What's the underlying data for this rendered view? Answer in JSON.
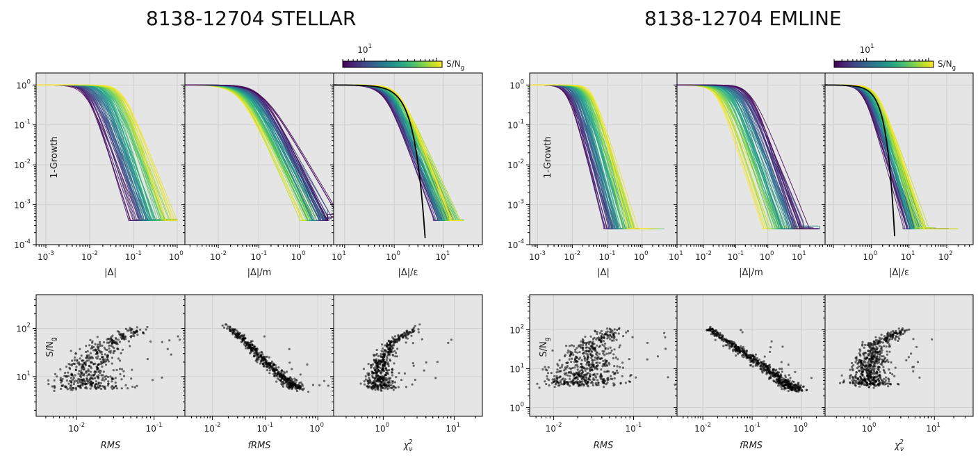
{
  "chart_data": [
    {
      "title": "8138-12704 STELLAR",
      "colorbar": {
        "label": "S/N$_g$",
        "ticks": [
          "10$^{1}$"
        ],
        "colormap": "viridis",
        "range": [
          5,
          120
        ],
        "log": true
      },
      "growth_panels": [
        {
          "type": "line",
          "xlabel": "|Δ|",
          "ylabel": "1-Growth",
          "xscale": "log",
          "yscale": "log",
          "xlim": [
            0.0006,
            1.5
          ],
          "ylim": [
            0.0001,
            2
          ],
          "xticks": [
            "10$^{-3}$",
            "10$^{-2}$",
            "10$^{-1}$",
            "10$^{0}$"
          ],
          "yticks": [
            "10$^{0}$",
            "10$^{-1}$",
            "10$^{-2}$",
            "10$^{-3}$",
            "10$^{-4}$"
          ],
          "curves": {
            "count": 60,
            "x_half_range": [
              0.008,
              0.06
            ],
            "falloff": 3.2,
            "y_floor": 0.0004,
            "tail_x_max": 1.0
          }
        },
        {
          "type": "line",
          "xlabel": "|Δ|/m",
          "xscale": "log",
          "yscale": "log",
          "xlim": [
            0.0015,
            7
          ],
          "ylim": [
            0.0001,
            2
          ],
          "xticks": [
            "10$^{-2}$",
            "10$^{-1}$",
            "10$^{0}$",
            "10$^{1}$"
          ],
          "curves": {
            "count": 60,
            "x_half_range": [
              0.03,
              0.12
            ],
            "falloff": 2.0,
            "y_floor": 0.0004,
            "tail_x_max": 5,
            "yellow_left": true
          }
        },
        {
          "type": "line",
          "xlabel": "|Δ|/ε",
          "xscale": "log",
          "yscale": "log",
          "xlim": [
            0.06,
            60
          ],
          "ylim": [
            0.0001,
            2
          ],
          "xticks": [
            "10$^{0}$",
            "10$^{1}$"
          ],
          "curves": {
            "count": 60,
            "x_half_range": [
              0.6,
              1.3
            ],
            "falloff": 3.0,
            "y_floor": 0.0004,
            "tail_x_max": 25
          },
          "reference_curve": {
            "color": "#000000",
            "description": "Gaussian reference"
          }
        }
      ],
      "scatter_panels": [
        {
          "type": "scatter",
          "xlabel": "RMS",
          "ylabel": "S/N$_g$",
          "xscale": "log",
          "yscale": "log",
          "xlim": [
            0.003,
            0.25
          ],
          "ylim": [
            1.5,
            500
          ],
          "xticks": [
            "10$^{-2}$",
            "10$^{-1}$"
          ],
          "yticks": [
            "10$^{2}$",
            "10$^{1}$"
          ],
          "trend": {
            "x_at_sn": [
              [
                6,
                0.013
              ],
              [
                20,
                0.015
              ],
              [
                50,
                0.025
              ],
              [
                100,
                0.06
              ]
            ],
            "spread": 0.18,
            "n": 500
          }
        },
        {
          "type": "scatter",
          "xlabel": "fRMS",
          "xscale": "log",
          "yscale": "log",
          "xlim": [
            0.003,
            2
          ],
          "ylim": [
            1.5,
            500
          ],
          "xticks": [
            "10$^{-2}$",
            "10$^{-1}$",
            "10$^{0}$"
          ],
          "trend": {
            "x_at_sn": [
              [
                6,
                0.38
              ],
              [
                20,
                0.1
              ],
              [
                50,
                0.045
              ],
              [
                110,
                0.02
              ]
            ],
            "spread": 0.08,
            "n": 500
          }
        },
        {
          "type": "scatter",
          "xlabel": "χ$_ν^2$",
          "xscale": "log",
          "yscale": "log",
          "xlim": [
            0.2,
            25
          ],
          "ylim": [
            1.5,
            500
          ],
          "xticks": [
            "10$^{0}$",
            "10$^{1}$"
          ],
          "trend": {
            "x_at_sn": [
              [
                6,
                0.9
              ],
              [
                20,
                0.92
              ],
              [
                50,
                1.3
              ],
              [
                100,
                2.8
              ]
            ],
            "spread": 0.09,
            "n": 500
          }
        }
      ]
    },
    {
      "title": "8138-12704 EMLINE",
      "colorbar": {
        "label": "S/N$_g$",
        "ticks": [
          "10$^{1}$"
        ],
        "colormap": "viridis",
        "range": [
          3,
          120
        ],
        "log": true
      },
      "growth_panels": [
        {
          "type": "line",
          "xlabel": "|Δ|",
          "ylabel": "1-Growth",
          "xscale": "log",
          "yscale": "log",
          "xlim": [
            0.0006,
            10
          ],
          "ylim": [
            0.0001,
            2
          ],
          "xticks": [
            "10$^{-3}$",
            "10$^{-2}$",
            "10$^{-1}$",
            "10$^{0}$",
            "10$^{1}$"
          ],
          "yticks": [
            "10$^{0}$",
            "10$^{-1}$",
            "10$^{-2}$",
            "10$^{-3}$",
            "10$^{-4}$"
          ],
          "curves": {
            "count": 60,
            "x_half_range": [
              0.007,
              0.04
            ],
            "falloff": 3.2,
            "y_floor": 0.00025,
            "tail_x_max": 7
          }
        },
        {
          "type": "line",
          "xlabel": "|Δ|/m",
          "xscale": "log",
          "yscale": "log",
          "xlim": [
            0.0015,
            60
          ],
          "ylim": [
            0.0001,
            2
          ],
          "xticks": [
            "10$^{-2}$",
            "10$^{-1}$",
            "10$^{0}$",
            "10$^{1}$"
          ],
          "curves": {
            "count": 60,
            "x_half_range": [
              0.025,
              0.3
            ],
            "falloff": 2.2,
            "y_floor": 0.00025,
            "tail_x_max": 40,
            "yellow_left": true
          }
        },
        {
          "type": "line",
          "xlabel": "|Δ|/ε",
          "xscale": "log",
          "yscale": "log",
          "xlim": [
            0.06,
            500
          ],
          "ylim": [
            0.0001,
            2
          ],
          "xticks": [
            "10$^{0}$",
            "10$^{1}$",
            "10$^{2}$"
          ],
          "curves": {
            "count": 60,
            "x_half_range": [
              0.6,
              1.5
            ],
            "falloff": 3.0,
            "y_floor": 0.00025,
            "tail_x_max": 200
          },
          "reference_curve": {
            "color": "#000000",
            "description": "Gaussian reference"
          }
        }
      ],
      "scatter_panels": [
        {
          "type": "scatter",
          "xlabel": "RMS",
          "ylabel": "S/N$_g$",
          "xscale": "log",
          "yscale": "log",
          "xlim": [
            0.005,
            0.35
          ],
          "ylim": [
            0.6,
            800
          ],
          "xticks": [
            "10$^{-2}$",
            "10$^{-1}$"
          ],
          "yticks": [
            "10$^{2}$",
            "10$^{1}$",
            "10$^{0}$"
          ],
          "trend": {
            "x_at_sn": [
              [
                4,
                0.02
              ],
              [
                10,
                0.025
              ],
              [
                40,
                0.03
              ],
              [
                100,
                0.06
              ]
            ],
            "spread": 0.22,
            "n": 600
          }
        },
        {
          "type": "scatter",
          "xlabel": "fRMS",
          "xscale": "log",
          "yscale": "log",
          "xlim": [
            0.003,
            3
          ],
          "ylim": [
            0.6,
            800
          ],
          "xticks": [
            "10$^{-2}$",
            "10$^{-1}$",
            "10$^{0}$"
          ],
          "trend": {
            "x_at_sn": [
              [
                3,
                0.7
              ],
              [
                10,
                0.2
              ],
              [
                40,
                0.04
              ],
              [
                110,
                0.013
              ]
            ],
            "spread": 0.09,
            "n": 600
          }
        },
        {
          "type": "scatter",
          "xlabel": "χ$_ν^2$",
          "xscale": "log",
          "yscale": "log",
          "xlim": [
            0.2,
            40
          ],
          "ylim": [
            0.6,
            800
          ],
          "xticks": [
            "10$^{0}$",
            "10$^{1}$"
          ],
          "trend": {
            "x_at_sn": [
              [
                4,
                1.0
              ],
              [
                10,
                0.95
              ],
              [
                40,
                1.2
              ],
              [
                100,
                3.0
              ]
            ],
            "spread": 0.14,
            "n": 600
          }
        }
      ]
    }
  ]
}
